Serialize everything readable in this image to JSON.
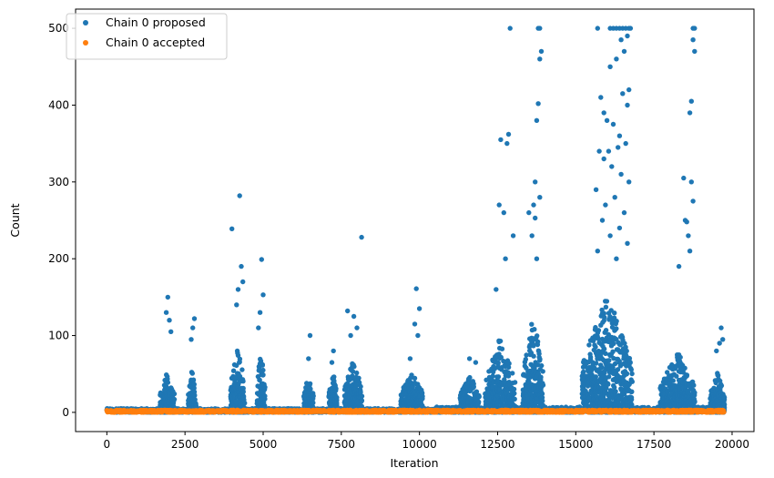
{
  "chart_data": {
    "type": "scatter",
    "title": "",
    "xlabel": "Iteration",
    "ylabel": "Count",
    "xlim": [
      -1000,
      20700
    ],
    "ylim": [
      -25,
      525
    ],
    "xticks": [
      0,
      2500,
      5000,
      7500,
      10000,
      12500,
      15000,
      17500,
      20000
    ],
    "yticks": [
      0,
      100,
      200,
      300,
      400,
      500
    ],
    "xtick_labels": [
      "0",
      "2500",
      "5000",
      "7500",
      "10000",
      "12500",
      "15000",
      "17500",
      "20000"
    ],
    "ytick_labels": [
      "0",
      "100",
      "200",
      "300",
      "400",
      "500"
    ],
    "grid": false,
    "legend_position": "top-left",
    "colors": {
      "proposed": "#1f77b4",
      "accepted": "#ff7f0e"
    },
    "series": [
      {
        "name": "Chain 0 proposed",
        "x_range": [
          0,
          19750
        ],
        "bursts": [
          {
            "x": [
              1700,
              2150
            ],
            "typical_max": 45,
            "outliers": [
              [
                1950,
                150
              ],
              [
                1900,
                130
              ],
              [
                2000,
                120
              ],
              [
                2050,
                105
              ]
            ]
          },
          {
            "x": [
              2600,
              2850
            ],
            "typical_max": 50,
            "outliers": [
              [
                2800,
                122
              ],
              [
                2750,
                110
              ],
              [
                2700,
                95
              ]
            ]
          },
          {
            "x": [
              3950,
              4400
            ],
            "typical_max": 80,
            "outliers": [
              [
                4000,
                239
              ],
              [
                4250,
                282
              ],
              [
                4300,
                190
              ],
              [
                4350,
                170
              ],
              [
                4200,
                160
              ],
              [
                4150,
                140
              ]
            ]
          },
          {
            "x": [
              4800,
              5050
            ],
            "typical_max": 75,
            "outliers": [
              [
                4950,
                199
              ],
              [
                5000,
                153
              ],
              [
                4900,
                130
              ],
              [
                4850,
                110
              ]
            ]
          },
          {
            "x": [
              6300,
              6600
            ],
            "typical_max": 40,
            "outliers": [
              [
                6500,
                100
              ],
              [
                6450,
                70
              ]
            ]
          },
          {
            "x": [
              7100,
              7350
            ],
            "typical_max": 45,
            "outliers": [
              [
                7250,
                80
              ],
              [
                7200,
                65
              ]
            ]
          },
          {
            "x": [
              7600,
              8150
            ],
            "typical_max": 60,
            "outliers": [
              [
                7700,
                132
              ],
              [
                7900,
                125
              ],
              [
                8000,
                110
              ],
              [
                8150,
                228
              ],
              [
                7800,
                100
              ]
            ]
          },
          {
            "x": [
              9400,
              10100
            ],
            "typical_max": 45,
            "outliers": [
              [
                9900,
                161
              ],
              [
                10000,
                135
              ],
              [
                9850,
                115
              ],
              [
                9950,
                100
              ],
              [
                9700,
                70
              ]
            ]
          },
          {
            "x": [
              11300,
              11900
            ],
            "typical_max": 40,
            "outliers": [
              [
                11600,
                70
              ],
              [
                11800,
                65
              ]
            ]
          },
          {
            "x": [
              12100,
              13050
            ],
            "typical_max": 90,
            "outliers": [
              [
                12900,
                500
              ],
              [
                12600,
                355
              ],
              [
                12850,
                362
              ],
              [
                12800,
                350
              ],
              [
                12550,
                270
              ],
              [
                12700,
                260
              ],
              [
                13000,
                230
              ],
              [
                12450,
                160
              ],
              [
                12750,
                200
              ]
            ]
          },
          {
            "x": [
              13300,
              13950
            ],
            "typical_max": 120,
            "outliers": [
              [
                13800,
                500
              ],
              [
                13850,
                500
              ],
              [
                13900,
                470
              ],
              [
                13850,
                460
              ],
              [
                13800,
                402
              ],
              [
                13750,
                380
              ],
              [
                13700,
                300
              ],
              [
                13850,
                280
              ],
              [
                13700,
                253
              ],
              [
                13650,
                270
              ],
              [
                13500,
                260
              ],
              [
                13600,
                230
              ],
              [
                13750,
                200
              ]
            ]
          },
          {
            "x": [
              15200,
              16800
            ],
            "typical_max": 150,
            "outliers": [
              [
                15700,
                500
              ],
              [
                16100,
                500
              ],
              [
                16200,
                500
              ],
              [
                16300,
                500
              ],
              [
                16400,
                500
              ],
              [
                16500,
                500
              ],
              [
                16600,
                500
              ],
              [
                16700,
                500
              ],
              [
                16750,
                500
              ],
              [
                16650,
                490
              ],
              [
                16450,
                485
              ],
              [
                16550,
                470
              ],
              [
                16300,
                460
              ],
              [
                16100,
                450
              ],
              [
                16700,
                420
              ],
              [
                16500,
                415
              ],
              [
                16650,
                400
              ],
              [
                15800,
                410
              ],
              [
                15900,
                390
              ],
              [
                16000,
                380
              ],
              [
                16200,
                375
              ],
              [
                16400,
                360
              ],
              [
                16600,
                350
              ],
              [
                16350,
                345
              ],
              [
                16050,
                340
              ],
              [
                15750,
                340
              ],
              [
                15900,
                330
              ],
              [
                16150,
                320
              ],
              [
                16450,
                310
              ],
              [
                16700,
                300
              ],
              [
                15650,
                290
              ],
              [
                16250,
                280
              ],
              [
                15950,
                270
              ],
              [
                16550,
                260
              ],
              [
                15850,
                250
              ],
              [
                16400,
                240
              ],
              [
                16100,
                230
              ],
              [
                16650,
                220
              ],
              [
                15700,
                210
              ],
              [
                16300,
                200
              ]
            ]
          },
          {
            "x": [
              17700,
              18800
            ],
            "typical_max": 70,
            "outliers": [
              [
                18750,
                500
              ],
              [
                18800,
                500
              ],
              [
                18750,
                485
              ],
              [
                18800,
                470
              ],
              [
                18700,
                405
              ],
              [
                18650,
                390
              ],
              [
                18450,
                305
              ],
              [
                18700,
                300
              ],
              [
                18750,
                275
              ],
              [
                18500,
                250
              ],
              [
                18550,
                248
              ],
              [
                18300,
                190
              ],
              [
                18600,
                230
              ],
              [
                18650,
                210
              ]
            ]
          },
          {
            "x": [
              19300,
              19750
            ],
            "typical_max": 45,
            "outliers": [
              [
                19650,
                110
              ],
              [
                19600,
                90
              ],
              [
                19700,
                95
              ],
              [
                19500,
                80
              ]
            ]
          }
        ]
      },
      {
        "name": "Chain 0 accepted",
        "x_range": [
          0,
          19750
        ],
        "values_range": [
          0,
          3
        ]
      }
    ]
  }
}
